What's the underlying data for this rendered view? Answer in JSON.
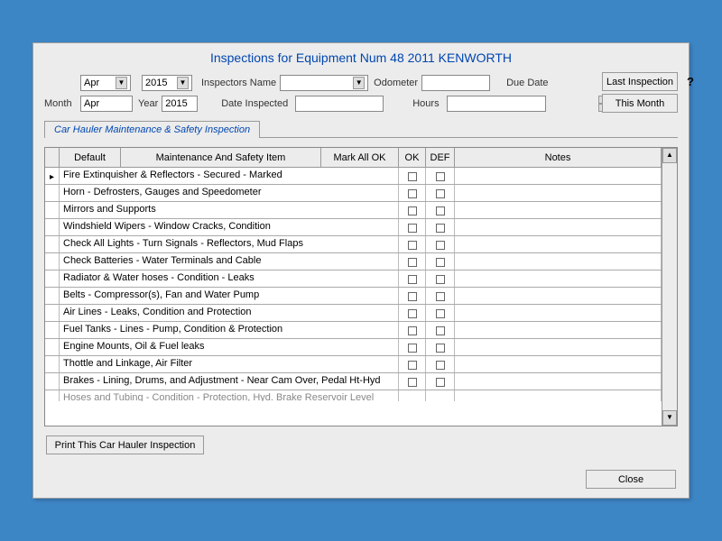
{
  "colors": {
    "page_bg": "#3d86c6",
    "window_bg": "#ececec",
    "title_color": "#0046b0",
    "border": "#999999"
  },
  "title": "Inspections for Equipment Num 48  2011 KENWORTH",
  "form": {
    "month_label": "Month",
    "year_label": "Year",
    "month_dd_value": "Apr",
    "year_dd_value": "2015",
    "month_txt_value": "Apr",
    "year_txt_value": "2015",
    "inspectors_name_label": "Inspectors Name",
    "inspectors_name_value": "",
    "date_inspected_label": "Date Inspected",
    "date_inspected_value": "",
    "odometer_label": "Odometer",
    "odometer_value": "",
    "hours_label": "Hours",
    "hours_value": "",
    "due_date_label": "Due Date",
    "due_date_value": ""
  },
  "buttons": {
    "last_inspection": "Last Inspection",
    "this_month": "This Month",
    "print": "Print This Car Hauler Inspection",
    "close": "Close"
  },
  "tab": "Car Hauler Maintenance & Safety Inspection",
  "grid": {
    "headers": {
      "default": "Default",
      "item": "Maintenance And Safety Item",
      "markall": "Mark All OK",
      "ok": "OK",
      "def": "DEF",
      "notes": "Notes"
    },
    "rows": [
      "Fire Extinquisher & Reflectors - Secured - Marked",
      "Horn - Defrosters, Gauges and Speedometer",
      "Mirrors and Supports",
      "Windshield Wipers - Window Cracks, Condition",
      "Check All Lights - Turn Signals - Reflectors, Mud Flaps",
      "Check Batteries - Water Terminals and Cable",
      "Radiator & Water hoses - Condition - Leaks",
      "Belts - Compressor(s), Fan and Water Pump",
      "Air Lines - Leaks, Condition and Protection",
      "Fuel Tanks - Lines - Pump, Condition & Protection",
      "Engine Mounts, Oil & Fuel leaks",
      "Thottle and Linkage, Air Filter",
      "Brakes - Lining, Drums, and Adjustment - Near Cam Over, Pedal Ht-Hyd"
    ],
    "partial_row": "Hoses and Tubing - Condition - Protection, Hyd. Brake Reservoir Level"
  }
}
